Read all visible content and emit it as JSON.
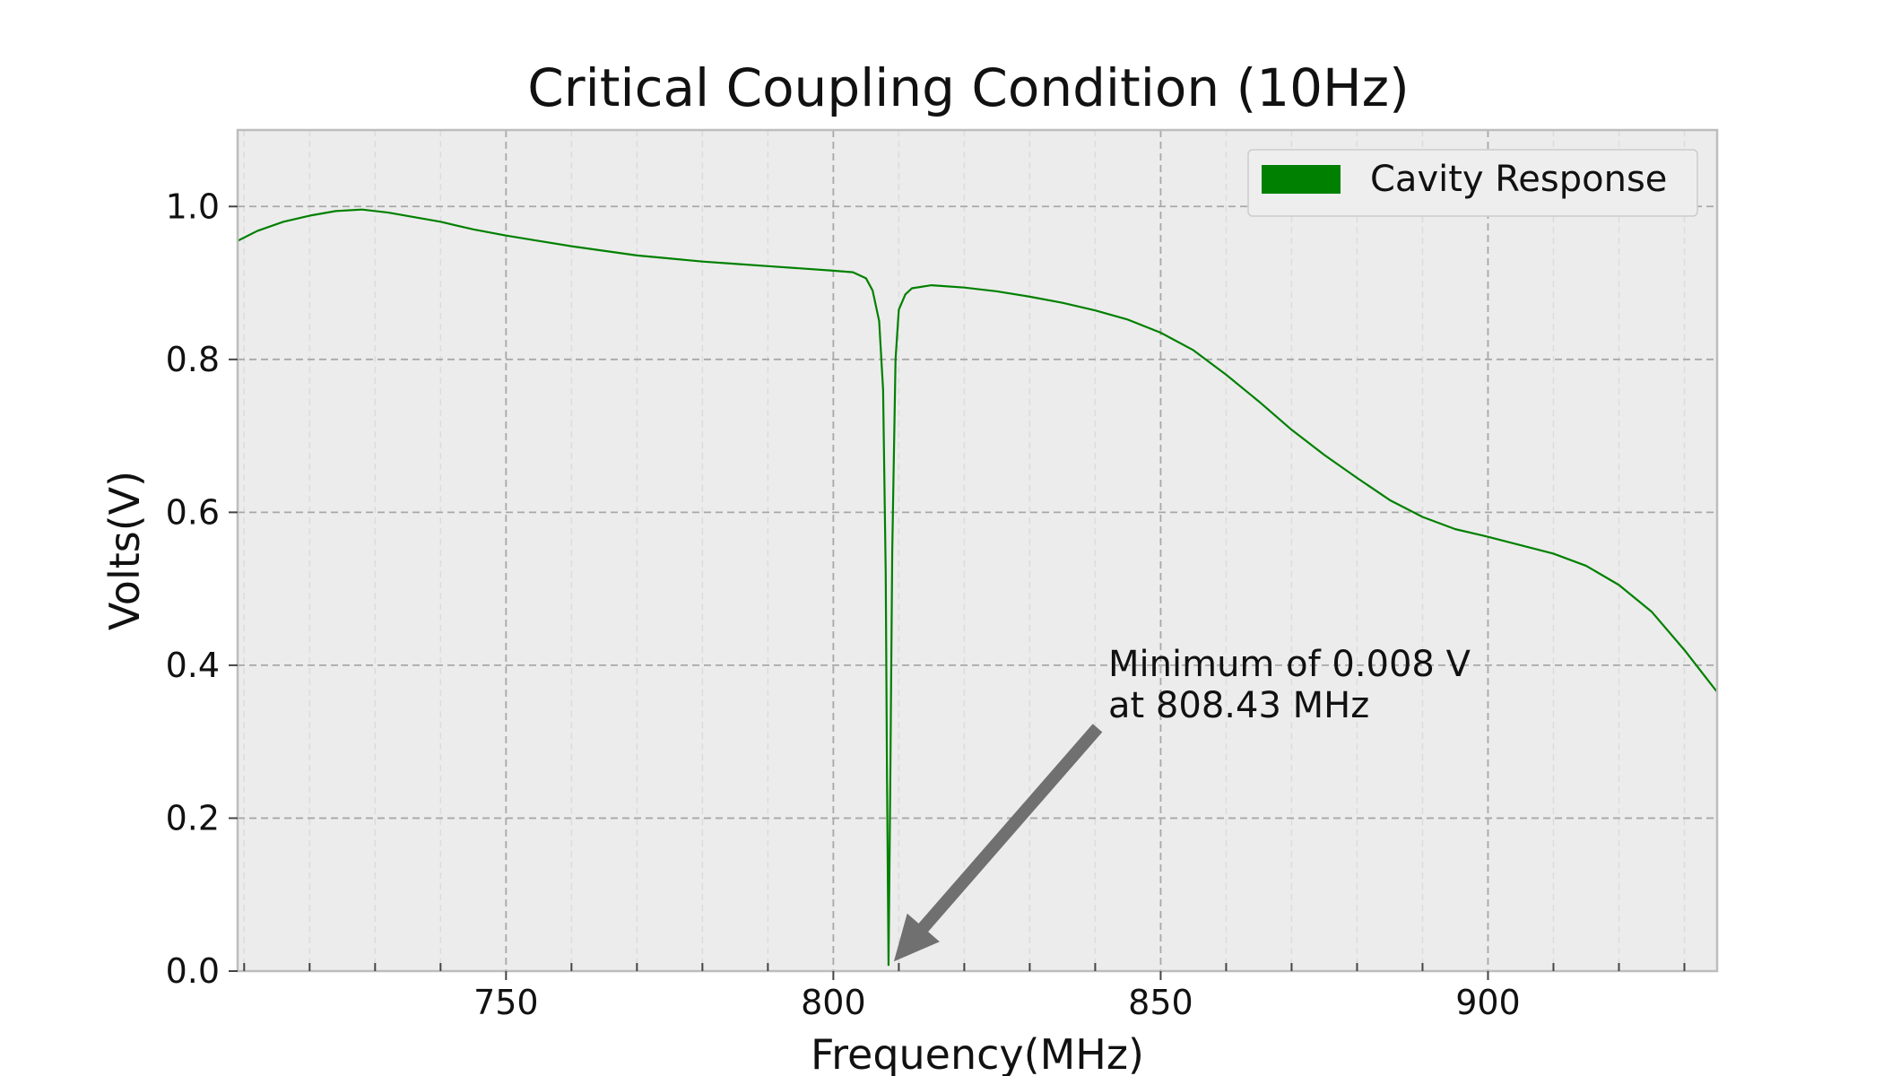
{
  "chart_data": {
    "type": "line",
    "title": "Critical Coupling Condition (10Hz)",
    "xlabel": "Frequency(MHz)",
    "ylabel": "Volts(V)",
    "xlim": [
      709,
      935
    ],
    "ylim": [
      0.0,
      1.1
    ],
    "x_ticks": [
      750,
      800,
      850,
      900
    ],
    "x_tick_labels": [
      "750",
      "800",
      "850",
      "900"
    ],
    "y_ticks": [
      0.0,
      0.2,
      0.4,
      0.6,
      0.8,
      1.0
    ],
    "y_tick_labels": [
      "0.0",
      "0.2",
      "0.4",
      "0.6",
      "0.8",
      "1.0"
    ],
    "grid": true,
    "minor_grid": true,
    "legend_position": "top-right",
    "background": "#ececec",
    "series": [
      {
        "name": "Cavity Response",
        "color": "#008000",
        "points": [
          [
            709,
            0.955
          ],
          [
            712,
            0.968
          ],
          [
            716,
            0.98
          ],
          [
            720,
            0.988
          ],
          [
            724,
            0.994
          ],
          [
            728,
            0.996
          ],
          [
            732,
            0.992
          ],
          [
            736,
            0.986
          ],
          [
            740,
            0.98
          ],
          [
            745,
            0.97
          ],
          [
            750,
            0.962
          ],
          [
            755,
            0.955
          ],
          [
            760,
            0.948
          ],
          [
            765,
            0.942
          ],
          [
            770,
            0.936
          ],
          [
            775,
            0.932
          ],
          [
            780,
            0.928
          ],
          [
            785,
            0.925
          ],
          [
            790,
            0.922
          ],
          [
            795,
            0.919
          ],
          [
            800,
            0.916
          ],
          [
            803,
            0.914
          ],
          [
            805,
            0.906
          ],
          [
            806,
            0.89
          ],
          [
            807,
            0.85
          ],
          [
            807.6,
            0.76
          ],
          [
            808.0,
            0.52
          ],
          [
            808.2,
            0.25
          ],
          [
            808.43,
            0.008
          ],
          [
            808.7,
            0.25
          ],
          [
            809.0,
            0.55
          ],
          [
            809.5,
            0.8
          ],
          [
            810,
            0.865
          ],
          [
            811,
            0.885
          ],
          [
            812,
            0.893
          ],
          [
            815,
            0.897
          ],
          [
            820,
            0.894
          ],
          [
            825,
            0.889
          ],
          [
            830,
            0.882
          ],
          [
            835,
            0.874
          ],
          [
            840,
            0.864
          ],
          [
            845,
            0.852
          ],
          [
            850,
            0.835
          ],
          [
            855,
            0.812
          ],
          [
            860,
            0.78
          ],
          [
            865,
            0.745
          ],
          [
            870,
            0.708
          ],
          [
            875,
            0.675
          ],
          [
            880,
            0.645
          ],
          [
            885,
            0.616
          ],
          [
            890,
            0.594
          ],
          [
            895,
            0.578
          ],
          [
            900,
            0.568
          ],
          [
            905,
            0.557
          ],
          [
            910,
            0.546
          ],
          [
            915,
            0.53
          ],
          [
            920,
            0.505
          ],
          [
            925,
            0.47
          ],
          [
            930,
            0.42
          ],
          [
            935,
            0.365
          ]
        ]
      }
    ],
    "annotation": {
      "lines": [
        "Minimum of 0.008 V",
        "at 808.43 MHz"
      ],
      "target": [
        808.43,
        0.008
      ],
      "text_anchor": [
        842,
        0.325
      ],
      "arrow_color": "#707070"
    }
  }
}
